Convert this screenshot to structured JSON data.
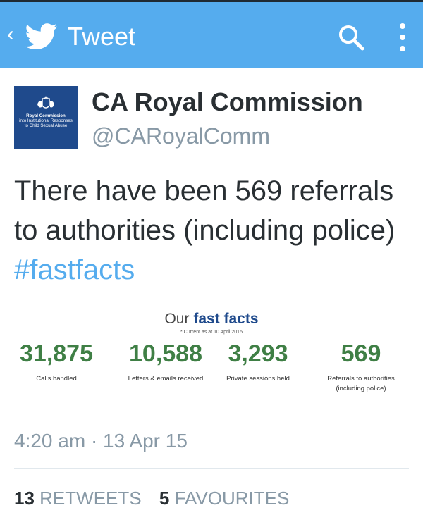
{
  "header": {
    "back_glyph": "‹",
    "title": "Tweet",
    "colors": {
      "bar": "#55acee",
      "icon": "#ffffff"
    },
    "icons": [
      "twitter-bird-icon",
      "search-icon",
      "overflow-menu-icon"
    ]
  },
  "author": {
    "name": "CA Royal Commission",
    "handle": "@CARoyalComm",
    "avatar_text": [
      "Royal Commission",
      "into Institutional Responses",
      "to Child Sexual Abuse"
    ]
  },
  "tweet": {
    "text_plain": "There have been 569 referrals to authorities (including police)",
    "hashtag": "#fastfacts",
    "hashtag_color": "#55acee"
  },
  "fast_facts": {
    "title_prefix": "Our",
    "title_bold": "fast facts",
    "note": "* Current as at 10 April 2015",
    "stats": [
      {
        "value": "31,875",
        "label_1": "Calls handled",
        "label_2": ""
      },
      {
        "value": "10,588",
        "label_1": "Letters & emails received",
        "label_2": ""
      },
      {
        "value": "3,293",
        "label_1": "Private sessions held",
        "label_2": ""
      },
      {
        "value": "569",
        "label_1": "Referrals to authorities",
        "label_2": "(including police)"
      }
    ],
    "value_color": "#3f7f45"
  },
  "meta": {
    "timestamp": "4:20 am · 13 Apr 15",
    "retweets_count": "13",
    "retweets_label": "RETWEETS",
    "favourites_count": "5",
    "favourites_label": "FAVOURITES"
  }
}
